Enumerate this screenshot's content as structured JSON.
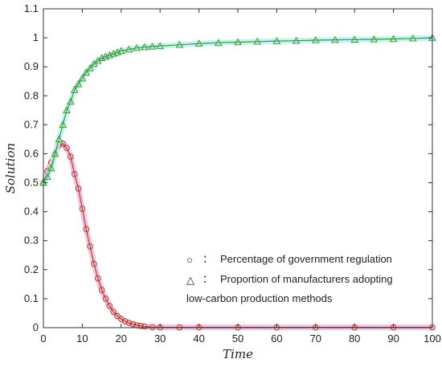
{
  "chart_data": {
    "type": "line",
    "xlabel": "Time",
    "ylabel": "Solution",
    "xlim": [
      0,
      100
    ],
    "ylim": [
      0,
      1.1
    ],
    "xticks": [
      0,
      10,
      20,
      30,
      40,
      50,
      60,
      70,
      80,
      90,
      100
    ],
    "yticks": [
      0,
      0.1,
      0.2,
      0.3,
      0.4,
      0.5,
      0.6,
      0.7,
      0.8,
      0.9,
      1,
      1.1
    ],
    "grid": false,
    "legend_position": "bottom-right",
    "legend": [
      {
        "symbol": "○",
        "separator": "：",
        "text": "Percentage of government regulation"
      },
      {
        "symbol": "△",
        "separator": "：",
        "text": "Proportion of manufacturers adopting",
        "text2": "low-carbon production methods"
      }
    ],
    "series": [
      {
        "marker": "circle",
        "color": "#c0392b",
        "highlight": "#f2b6d8",
        "x": [
          0,
          1,
          2,
          3,
          4,
          5,
          6,
          7,
          8,
          9,
          10,
          11,
          12,
          13,
          14,
          15,
          16,
          17,
          18,
          19,
          20,
          21,
          22,
          23,
          24,
          25,
          26,
          28,
          30,
          35,
          40,
          50,
          60,
          70,
          80,
          90,
          100
        ],
        "values": [
          0.5,
          0.54,
          0.57,
          0.6,
          0.63,
          0.635,
          0.62,
          0.59,
          0.53,
          0.48,
          0.41,
          0.34,
          0.28,
          0.22,
          0.17,
          0.13,
          0.1,
          0.075,
          0.055,
          0.04,
          0.03,
          0.022,
          0.016,
          0.012,
          0.008,
          0.006,
          0.004,
          0.002,
          0.001,
          0.001,
          0.001,
          0.001,
          0.001,
          0.001,
          0.001,
          0.001,
          0.001
        ]
      },
      {
        "marker": "triangle",
        "color": "#33a02c",
        "highlight": "#b8f0f5",
        "x": [
          0,
          1,
          2,
          3,
          4,
          5,
          6,
          7,
          8,
          9,
          10,
          11,
          12,
          13,
          14,
          15,
          16,
          17,
          18,
          19,
          20,
          22,
          24,
          26,
          28,
          30,
          35,
          40,
          45,
          50,
          55,
          60,
          65,
          70,
          75,
          80,
          85,
          90,
          95,
          100
        ],
        "values": [
          0.5,
          0.52,
          0.55,
          0.6,
          0.65,
          0.7,
          0.75,
          0.78,
          0.82,
          0.84,
          0.86,
          0.88,
          0.895,
          0.91,
          0.92,
          0.93,
          0.935,
          0.94,
          0.945,
          0.95,
          0.955,
          0.96,
          0.965,
          0.968,
          0.97,
          0.972,
          0.976,
          0.98,
          0.983,
          0.985,
          0.987,
          0.989,
          0.99,
          0.992,
          0.993,
          0.994,
          0.995,
          0.996,
          0.998,
          1.0
        ]
      }
    ]
  }
}
